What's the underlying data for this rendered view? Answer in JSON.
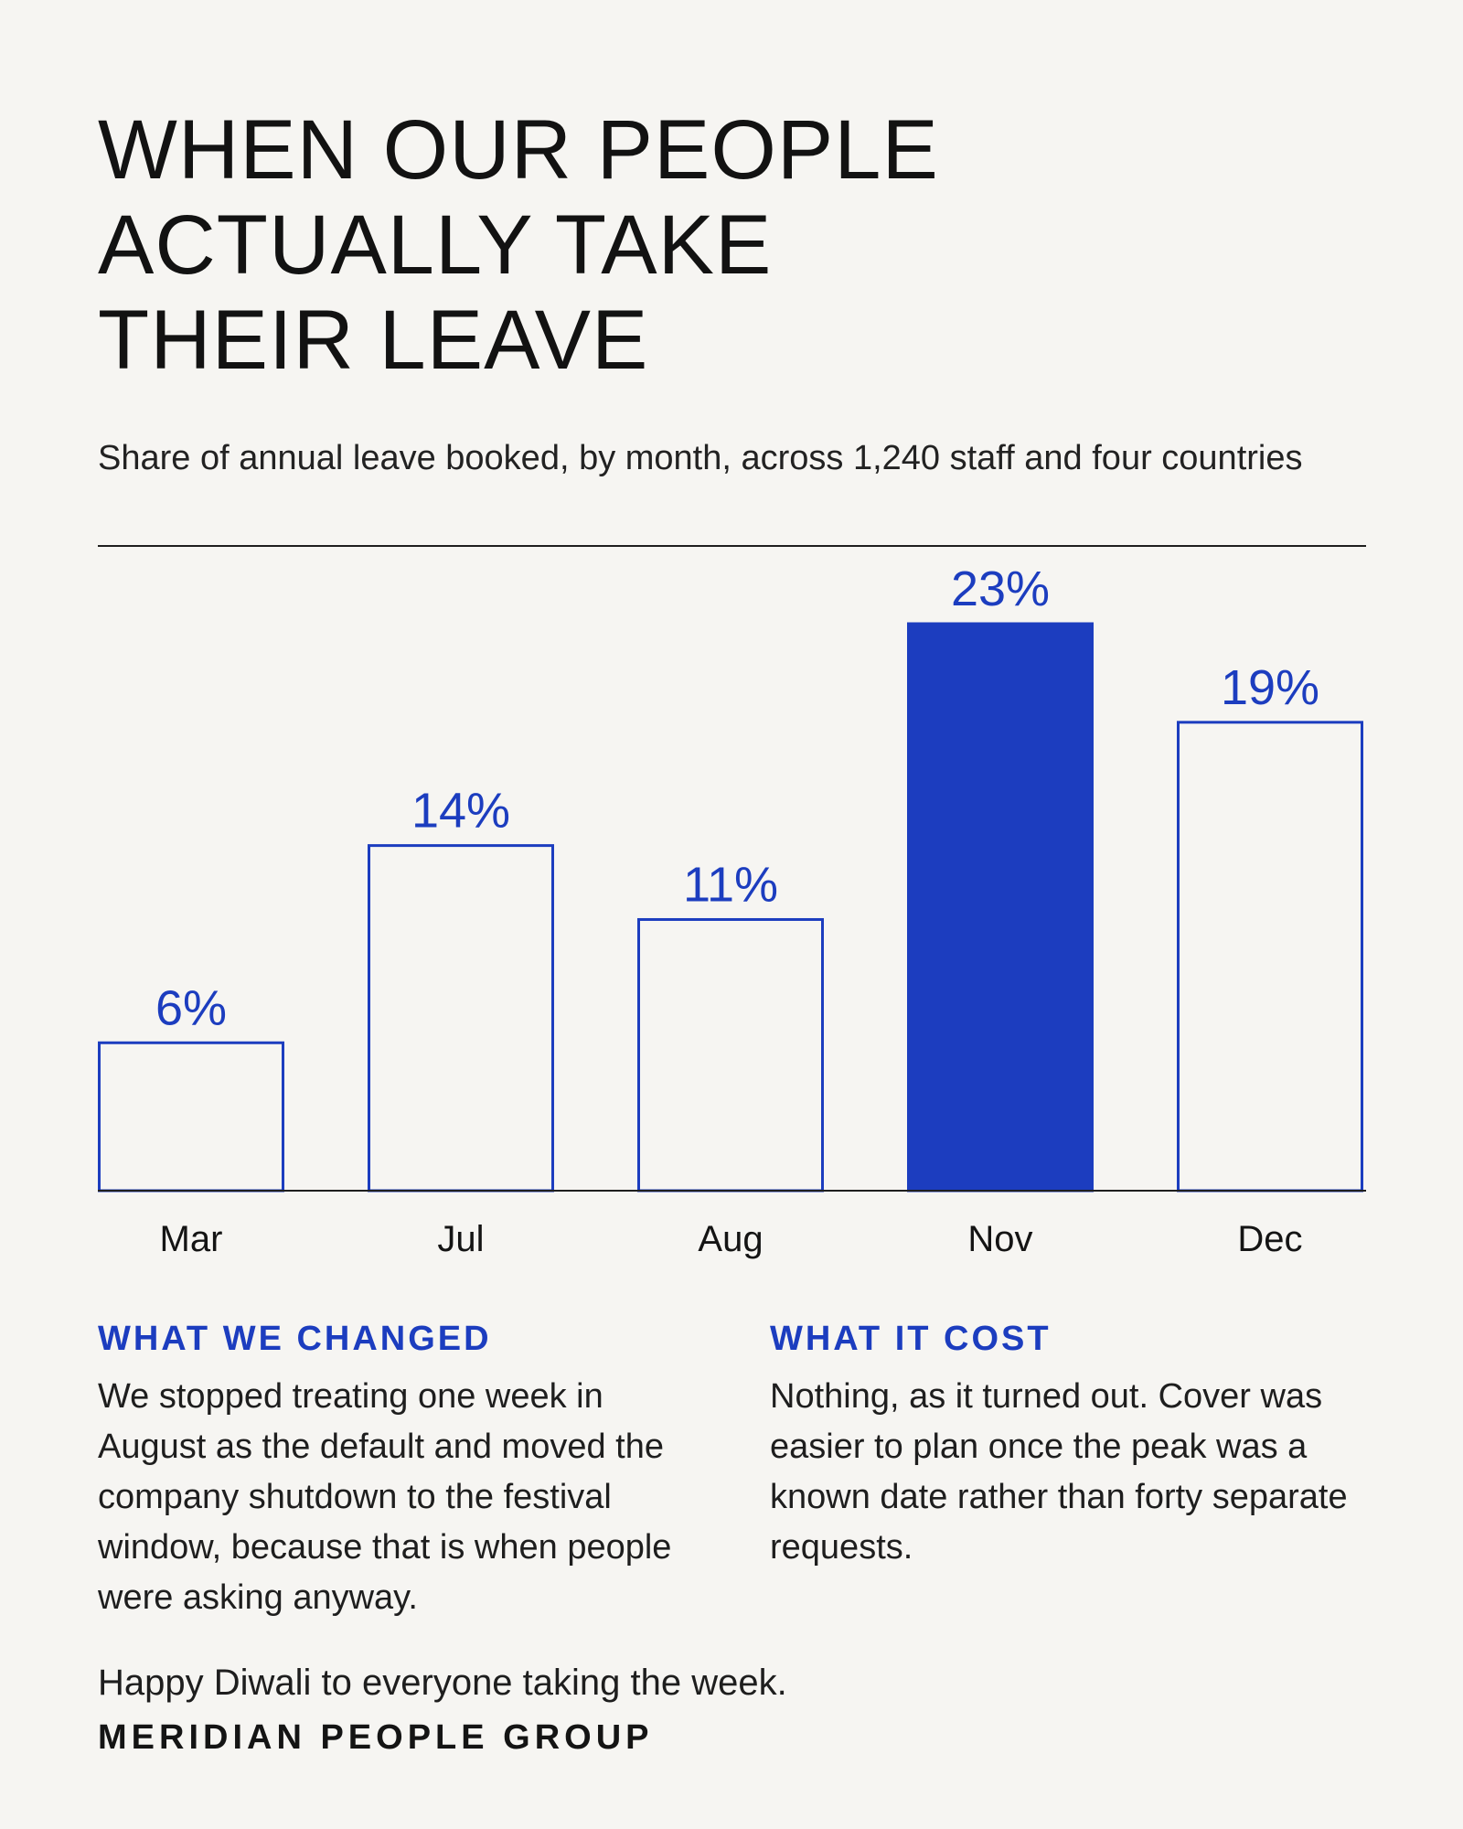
{
  "title": "WHEN OUR PEOPLE\nACTUALLY TAKE\nTHEIR LEAVE",
  "subtitle": "Share of annual leave booked, by month, across 1,240 staff and four countries",
  "chart_data": {
    "type": "bar",
    "categories": [
      "Mar",
      "Jul",
      "Aug",
      "Nov",
      "Dec"
    ],
    "values": [
      6,
      14,
      11,
      23,
      19
    ],
    "value_labels": [
      "6%",
      "14%",
      "11%",
      "23%",
      "19%"
    ],
    "highlight": "Nov",
    "ylim": [
      0,
      23
    ],
    "grid": false,
    "colors": {
      "accent": "#1c3dbf",
      "outline_fill": "#f6f5f2",
      "axis": "#1e1e1e",
      "category_text": "#141414"
    }
  },
  "sections": [
    {
      "heading": "WHAT WE CHANGED",
      "body": "We stopped treating one week in August as the default and moved the company shutdown to the festival window, because that is when people were asking anyway."
    },
    {
      "heading": "WHAT IT COST",
      "body": "Nothing, as it turned out. Cover was easier to plan once the peak was a known date rather than forty separate requests."
    }
  ],
  "greeting": "Happy Diwali to everyone taking the week.",
  "organization": "MERIDIAN PEOPLE GROUP"
}
